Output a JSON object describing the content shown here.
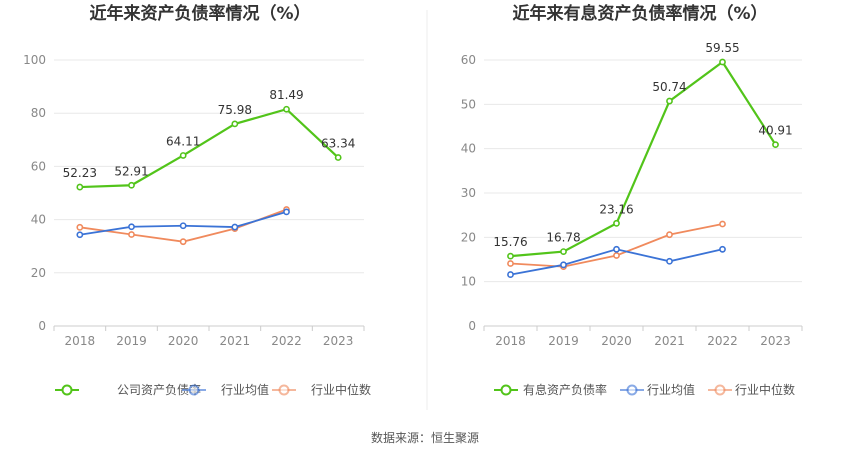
{
  "source_text": "数据来源：恒生聚源",
  "chart_data": [
    {
      "type": "line",
      "title": "近年来资产负债率情况（%）",
      "categories": [
        "2018",
        "2019",
        "2020",
        "2021",
        "2022",
        "2023"
      ],
      "ylim": [
        0,
        100
      ],
      "yticks": [
        "0",
        "20",
        "40",
        "60",
        "80",
        "100"
      ],
      "grid": true,
      "legend_position": "bottom",
      "series": [
        {
          "name": "公司资产负债率",
          "color": "#52c41a",
          "values": [
            52.23,
            52.91,
            64.11,
            75.98,
            81.49,
            63.34
          ],
          "labels": [
            "52.23",
            "52.91",
            "64.11",
            "75.98",
            "81.49",
            "63.34"
          ]
        },
        {
          "name": "行业均值",
          "color": "#3b73d6",
          "values": [
            34.3,
            37.3,
            37.7,
            37.2,
            42.9,
            null
          ],
          "labels": []
        },
        {
          "name": "行业中位数",
          "color": "#f08a5d",
          "values": [
            37.1,
            34.4,
            31.7,
            36.6,
            43.8,
            null
          ],
          "labels": []
        }
      ]
    },
    {
      "type": "line",
      "title": "近年来有息资产负债率情况（%）",
      "categories": [
        "2018",
        "2019",
        "2020",
        "2021",
        "2022",
        "2023"
      ],
      "ylim": [
        0,
        60
      ],
      "yticks": [
        "0",
        "10",
        "20",
        "30",
        "40",
        "50",
        "60"
      ],
      "grid": true,
      "legend_position": "bottom",
      "series": [
        {
          "name": "有息资产负债率",
          "color": "#52c41a",
          "values": [
            15.76,
            16.78,
            23.16,
            50.74,
            59.55,
            40.91
          ],
          "labels": [
            "15.76",
            "16.78",
            "23.16",
            "50.74",
            "59.55",
            "40.91"
          ]
        },
        {
          "name": "行业均值",
          "color": "#3b73d6",
          "values": [
            11.6,
            13.8,
            17.3,
            14.6,
            17.3,
            null
          ],
          "labels": []
        },
        {
          "name": "行业中位数",
          "color": "#f08a5d",
          "values": [
            14.1,
            13.4,
            15.9,
            20.6,
            23.0,
            null
          ],
          "labels": []
        }
      ]
    }
  ]
}
